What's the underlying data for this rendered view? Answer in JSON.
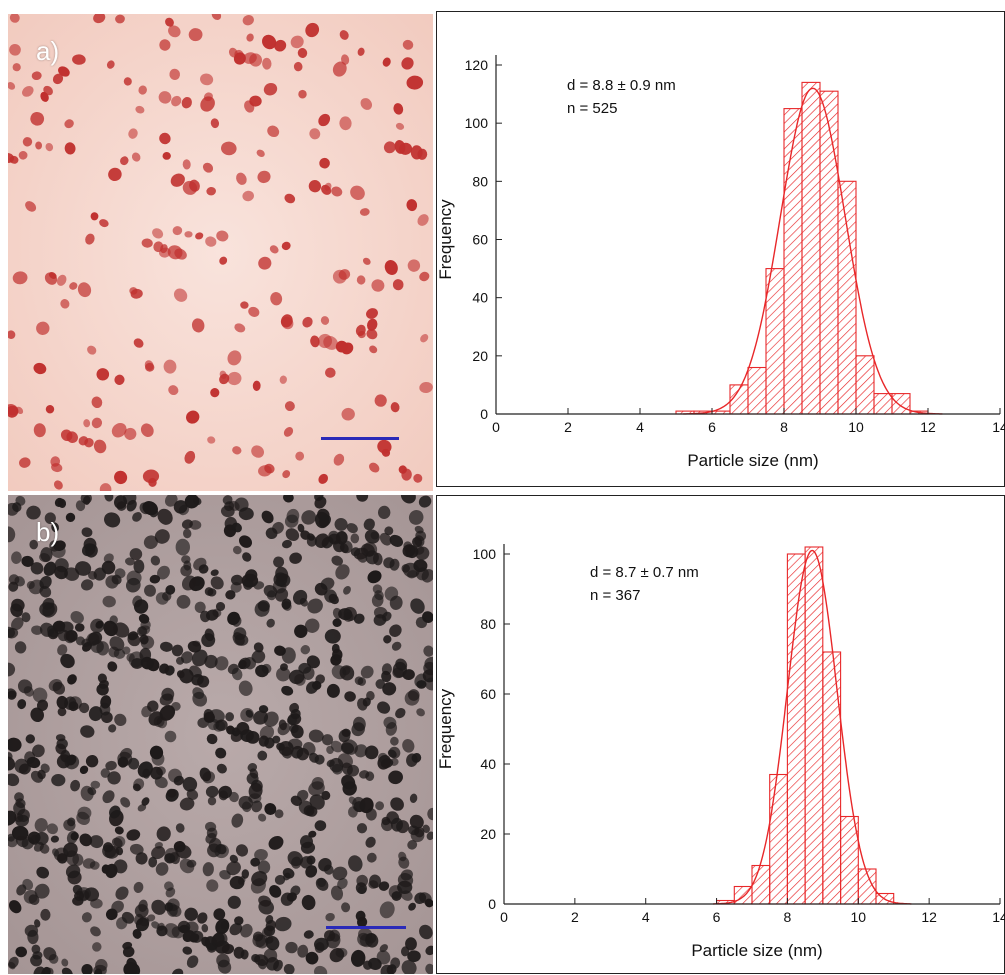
{
  "panels": [
    {
      "label": "a)",
      "color": "#c0302e"
    },
    {
      "label": "b)",
      "color": "#1e1a1a"
    }
  ],
  "colors": {
    "bars": "#e8282a",
    "scale_bar": "#2a2ab8",
    "axis": "#222222"
  },
  "chart_data": [
    {
      "type": "bar",
      "subtype": "histogram",
      "xlabel": "Particle size (nm)",
      "ylabel": "Frequency",
      "xlim": [
        0,
        14
      ],
      "ylim": [
        0,
        120
      ],
      "xticks": [
        0,
        2,
        4,
        6,
        8,
        10,
        12,
        14
      ],
      "yticks": [
        0,
        20,
        40,
        60,
        80,
        100,
        120
      ],
      "annotations": [
        "d = 8.8 ± 0.9 nm",
        "n = 525"
      ],
      "bin_width": 0.5,
      "bins": [
        5.0,
        5.5,
        6.0,
        6.5,
        7.0,
        7.5,
        8.0,
        8.5,
        9.0,
        9.5,
        10.0,
        10.5,
        11.0,
        11.5
      ],
      "values": [
        1,
        1,
        1,
        10,
        16,
        50,
        105,
        114,
        111,
        80,
        20,
        7,
        7,
        1
      ],
      "fit": {
        "type": "gaussian",
        "mean": 8.8,
        "sd": 0.9,
        "peak": 112
      },
      "grid": false,
      "bar_fill": "hatched"
    },
    {
      "type": "bar",
      "subtype": "histogram",
      "xlabel": "Particle size (nm)",
      "ylabel": "Frequency",
      "xlim": [
        0,
        14
      ],
      "ylim": [
        0,
        100
      ],
      "xticks": [
        0,
        2,
        4,
        6,
        8,
        10,
        12,
        14
      ],
      "yticks": [
        0,
        20,
        40,
        60,
        80,
        100
      ],
      "annotations": [
        "d = 8.7 ± 0.7 nm",
        "n = 367"
      ],
      "bin_width": 0.5,
      "bins": [
        6.0,
        6.5,
        7.0,
        7.5,
        8.0,
        8.5,
        9.0,
        9.5,
        10.0,
        10.5
      ],
      "values": [
        1,
        5,
        11,
        37,
        100,
        102,
        72,
        25,
        10,
        3
      ],
      "fit": {
        "type": "gaussian",
        "mean": 8.7,
        "sd": 0.7,
        "peak": 101
      },
      "grid": false,
      "bar_fill": "hatched"
    }
  ]
}
